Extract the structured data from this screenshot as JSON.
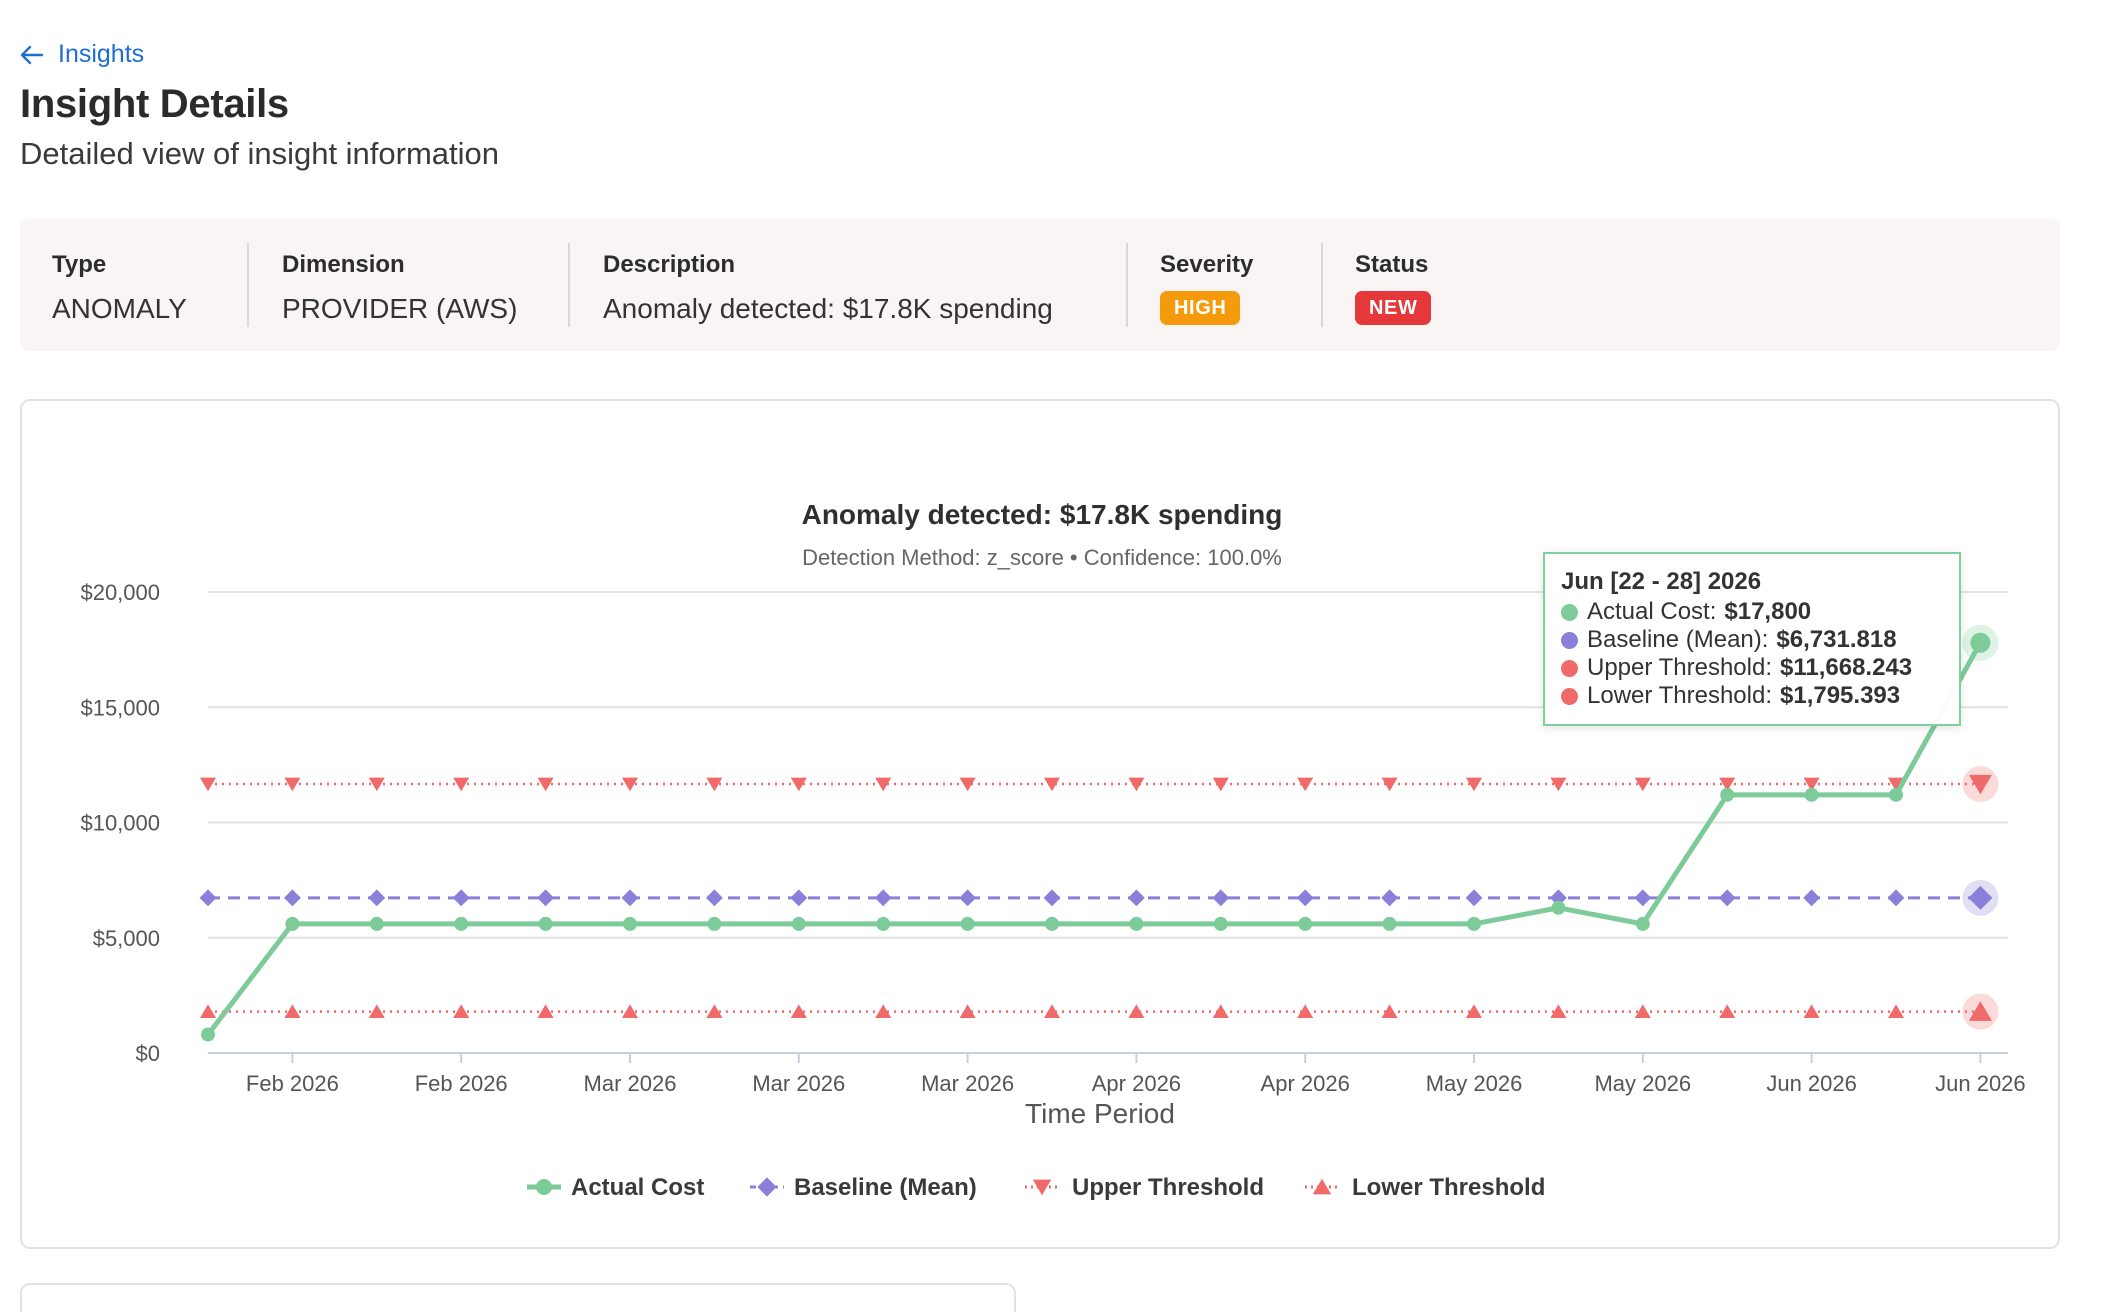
{
  "header": {
    "back_label": "Insights",
    "title": "Insight Details",
    "subtitle": "Detailed view of insight information"
  },
  "info": {
    "type_label": "Type",
    "type_value": "ANOMALY",
    "dimension_label": "Dimension",
    "dimension_value": "PROVIDER (AWS)",
    "description_label": "Description",
    "description_value": "Anomaly detected: $17.8K spending",
    "severity_label": "Severity",
    "severity_value": "HIGH",
    "severity_color": "#f59a0b",
    "status_label": "Status",
    "status_value": "NEW",
    "status_color": "#e5383b"
  },
  "tooltip": {
    "title": "Jun [22 - 28] 2026",
    "rows": [
      {
        "label": "Actual Cost:",
        "value": "$17,800",
        "color": "#7ccb98"
      },
      {
        "label": "Baseline (Mean):",
        "value": "$6,731.818",
        "color": "#8a80d9"
      },
      {
        "label": "Upper Threshold:",
        "value": "$11,668.243",
        "color": "#f06a6a"
      },
      {
        "label": "Lower Threshold:",
        "value": "$1,795.393",
        "color": "#f06a6a"
      }
    ]
  },
  "chart_data": {
    "type": "line",
    "title": "Anomaly detected: $17.8K spending",
    "subtitle": "Detection Method: z_score • Confidence: 100.0%",
    "xlabel": "Time Period",
    "ylabel": "",
    "ylim": [
      0,
      20000
    ],
    "y_ticks": [
      "$0",
      "$5,000",
      "$10,000",
      "$15,000",
      "$20,000"
    ],
    "y_tick_values": [
      0,
      5000,
      10000,
      15000,
      20000
    ],
    "x_tick_labels": [
      "Feb 2026",
      "Feb 2026",
      "Mar 2026",
      "Mar 2026",
      "Mar 2026",
      "Apr 2026",
      "Apr 2026",
      "May 2026",
      "May 2026",
      "Jun 2026",
      "Jun 2026"
    ],
    "x_tick_index": [
      1,
      3,
      5,
      7,
      9,
      11,
      13,
      15,
      17,
      19,
      21
    ],
    "grid": true,
    "legend": "bottom",
    "series": [
      {
        "name": "Actual Cost",
        "color": "#7ccb98",
        "style": "solid",
        "marker": "circle",
        "values": [
          800,
          5600,
          5600,
          5600,
          5600,
          5600,
          5600,
          5600,
          5600,
          5600,
          5600,
          5600,
          5600,
          5600,
          5600,
          5600,
          6300,
          5600,
          11200,
          11200,
          11200,
          17800
        ]
      },
      {
        "name": "Baseline (Mean)",
        "color": "#8a80d9",
        "style": "dashed",
        "marker": "diamond",
        "values": [
          6731.818,
          6731.818,
          6731.818,
          6731.818,
          6731.818,
          6731.818,
          6731.818,
          6731.818,
          6731.818,
          6731.818,
          6731.818,
          6731.818,
          6731.818,
          6731.818,
          6731.818,
          6731.818,
          6731.818,
          6731.818,
          6731.818,
          6731.818,
          6731.818,
          6731.818
        ]
      },
      {
        "name": "Upper Threshold",
        "color": "#f06a6a",
        "style": "dotted",
        "marker": "triangle-down",
        "values": [
          11668.243,
          11668.243,
          11668.243,
          11668.243,
          11668.243,
          11668.243,
          11668.243,
          11668.243,
          11668.243,
          11668.243,
          11668.243,
          11668.243,
          11668.243,
          11668.243,
          11668.243,
          11668.243,
          11668.243,
          11668.243,
          11668.243,
          11668.243,
          11668.243,
          11668.243
        ]
      },
      {
        "name": "Lower Threshold",
        "color": "#f06a6a",
        "style": "dotted",
        "marker": "triangle-up",
        "values": [
          1795.393,
          1795.393,
          1795.393,
          1795.393,
          1795.393,
          1795.393,
          1795.393,
          1795.393,
          1795.393,
          1795.393,
          1795.393,
          1795.393,
          1795.393,
          1795.393,
          1795.393,
          1795.393,
          1795.393,
          1795.393,
          1795.393,
          1795.393,
          1795.393,
          1795.393
        ]
      }
    ],
    "highlighted_index": 21
  }
}
